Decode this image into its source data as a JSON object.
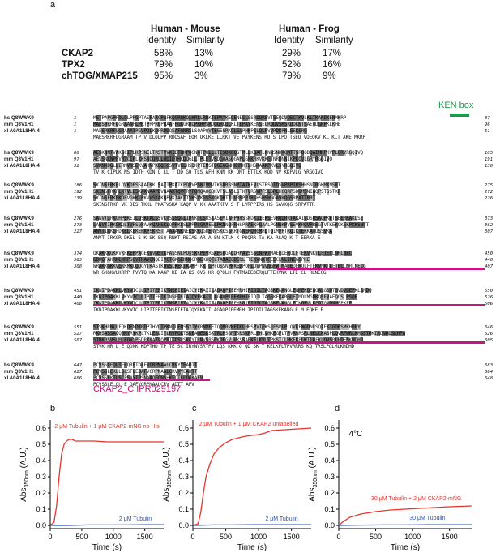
{
  "panel_a": {
    "letter": "a",
    "table": {
      "groups": [
        "Human - Mouse",
        "Human - Frog"
      ],
      "subheaders": [
        "Identity",
        "Similarity",
        "Identity",
        "Similarity"
      ],
      "rows": [
        {
          "label": "CKAP2",
          "values": [
            "58%",
            "13%",
            "29%",
            "17%"
          ]
        },
        {
          "label": "TPX2",
          "values": [
            "79%",
            "10%",
            "52%",
            "16%"
          ]
        },
        {
          "label": "chTOG/XMAP215",
          "values": [
            "95%",
            "3%",
            "79%",
            "9%"
          ]
        }
      ]
    },
    "ken_box_label": "KEN box",
    "domain_label": "CKAP2_C IPR029197",
    "alignment_blocks": [
      {
        "rows": [
          {
            "name": "hs Q8WWK9",
            "start": "1",
            "end": "87",
            "seq": "MSTPAPGPRDLQLPRGPTASPAAGPAFKQGRGKQLKRLLRRKTEPAYKEGENESLSSRDQRSVTSEQDVQECTKVLKLTKAMDKENMKRP"
          },
          {
            "name": "mm Q3V1H1",
            "start": "1",
            "end": "96",
            "seq": "MAESRKRFLGRAANPLPRTPRPRGPRAAFPGKGRRDPRRPSRDGGRKQLKLTEPAYKENSEQRDDVSRSRDQKNTSAEQDGRPKLKHE"
          },
          {
            "name": "xl A0A1L8HAI4",
            "start": "1",
            "end": "51",
            "seq": "MAESRKRFLGRAAATPGVPDLKQPRDDQSAFGNRSLSQAPQVTEEEGRKQLSAPHKPSLQLPVVRDKRNLEEKSRG"
          }
        ],
        "cons": "MAESRKRFLGRAAM TP V DLQLPP RDQSAF EQR QKLKE LLRKT VE PAYKENS RQ S LPQ TSEQ VQEQKV KL KLT AKE MKRP"
      },
      {
        "rows": [
          {
            "name": "hs Q8WWK9",
            "start": "88",
            "end": "185",
            "seq": "AESKNNTVAKGCIPLKPSNELTRSTVVKIDTHKPQGNQTPHLLLTESDKPQSTMLLKQAFLKNNSNKKQMTTSRQQDQAIMKPKVPLGRYRGQIVQ"
          },
          {
            "name": "mm Q3V1H1",
            "start": "97",
            "end": "191",
            "seq": "AESSNKNPFVRTCIPLKKSNDQRDLQDIDTHKDQGLLTPLETVSDGQASQGAPLGNKRKVKKGTNRDNNIKPKQVLGRYRGQIVQ"
          },
          {
            "name": "xl A0A1L8HAI4",
            "start": "52",
            "end": "138",
            "seq": "SVRNKDGLLERMVNSEKVAKNPKQQIGSVTVKLHSDKPTEMSTQGEGGNKKKMKTLHSKAAKPKVLSYRGQIVQ"
          }
        ],
        "cons": "TV K CIPLK NS IDTH KDN Q LL T DD GQ TLS AFH KNN KK QMT ETTLK KQD NV KKPVLG YRGQIVQ"
      },
      {
        "rows": [
          {
            "name": "hs Q8WWK9",
            "start": "186",
            "end": "275",
            "seq": "SKINSFRKPLQVKDESSAATKKLSATIPKATKPQPVPSNTVMVTKSNRSSNMTATKFVLSTRSQTDSVPRPIRSHHSNTRGKMKNSRT"
          },
          {
            "name": "mm Q3V1H1",
            "start": "192",
            "end": "272",
            "seq": "SKINSFRKPLKTVLESKAKNAAPDVNAAKTQVFRYFQMQAHGQKVTSLASLGTKTVRSVPFSLSRLHCQRPSDGMSNIAQPSTSSTKR"
          },
          {
            "name": "xl A0A1L8HAI4",
            "start": "139",
            "end": "226",
            "seq": "SKINSFRKPKDEVGKKLPKVVSKAKQPVKTAKTTVKSVKGSSKGKQHTTLVRRPPIRSHSHSHGGAVKQGSRPATTRRT"
          }
        ],
        "cons": "SKINSFRKP VK DES TKKL PKATVSKA KAQP V KK AAATKFV S T LVRPPIRS HS GAVKQG SRPATTR"
      },
      {
        "rows": [
          {
            "name": "hs Q8WWK9",
            "start": "276",
            "end": "373",
            "seq": "SANVTIRKGHPEKEILQSKTALSSVKTSSSQGIIRNKTLSRSIASEVIARPHHSSNDKIIEKSEVRQDRRTAKAIVDSRSAQPKETSEERKAKLSE"
          },
          {
            "name": "mm Q3V1H1",
            "start": "273",
            "end": "362",
            "seq": "LANVTIRKGKQLTVRSQPAVKQAHSKLQPRKSSLPRRSGAVESLPKNNQPRHSPRAEKRQAALPGNNKPVSEVKRQVPREGTVTKEKGKEKPKKSNVT"
          },
          {
            "name": "xl A0A1L8HAI4",
            "start": "227",
            "end": "307",
            "seq": "ANVTIRKGPDKELKEKEPKPSKRSTTAAAANKNEKSKKQGRENVSKKSSRRTGNEKQRGMHDTQIMPPTRQIKTEKKAQDSSVKA"
          }
        ],
        "cons": "ANVT IRKGR DKEL S K SK SSQ RNKT RSIAS AR A SN KTLM K PDQRR TA KA RSAQ K T EERKA E"
      },
      {
        "rows": [
          {
            "name": "hs Q8WWK9",
            "start": "374",
            "end": "450",
            "seq": "QKAKKKGKKVKRKEPPAGEKVVNSTKPASSNLPQTSKKPEVRSAFSRGAQDHPAVSSSGNFWTMAEEDERQLFTEKVNKTLETECLNRLNEC"
          },
          {
            "name": "mm Q3V1H1",
            "start": "363",
            "end": "440",
            "seq": "GDRQFAKRKLKRPSQVTKAVQNQEIVCTGKGEKNQGRQEKHQFLTAMAEEDERLFTEKVNKTFEECLNLINEGGPKE"
          },
          {
            "name": "xl A0A1L8HAI4",
            "start": "308",
            "end": "407",
            "seq": "WRAKKGKKVGKKMKQQQGYTKASTKQVSLKEKTKAMPTKKTGPFQSSNPKKEDPQPLQVPNVNGFWTMAEEDERQLFTEKVNKTLETECLNRLNECG"
          }
        ],
        "cons": "WR GKGKVLKRPP PVVTQ KA KAGP KE EA KS QVS KR QPQLH FWTMAEEDERQLFTEKVNK LTE CL RLNECG"
      },
      {
        "rows": [
          {
            "name": "hs Q8WWK9",
            "start": "451",
            "end": "550",
            "seq": "IKNIPDAKKLVKYWICLLIPITEPIKTNSPIEIAIQYEKAIILAGAQPIEEMRHIPIDILTAGSKEKANGLENMEKQEAGALGSDTGVDVDEPKLSNDQ"
          },
          {
            "name": "mm Q3V1H1",
            "start": "440",
            "end": "526",
            "seq": "IKNIPDAKKLVKYWICLLIPITEPIKTNSPIEIAIQYEKAIILAGAQPIEEMRHIPIDILTAGSKEKARGLETMDLMGNKQSFVAEQGSLPSQE"
          },
          {
            "name": "xl A0A1L8HAI4",
            "start": "408",
            "end": "506",
            "seq": "IKNIPDAKKLVKYWICLLIPITEPIKTNSPIEIAIQYEKAIILAGAQPIEEMRQIPIDILTAGSKEKANGLETKQFVLKEDTGVDVMEPKEE"
          }
        ],
        "cons": "IKNIPDAKKLVKYWICLLIPITEPIKTNSPIEIAIQYEKAIILAGAQPIEEMRH IPIDILTAGSKEKANGLE M EQKE E"
      },
      {
        "rows": [
          {
            "name": "hs Q8WWK9",
            "start": "551",
            "end": "646",
            "seq": "STSKHRNLLFQKQENDKRDPTHVQTPKNTLEQSSYIYKRNVFETQQVRVKETKLHRSPVTEKSLESMLPLQVKFWQDNLSQTEKIGDPSMKHDHY"
          },
          {
            "name": "mm Q3V1H1",
            "start": "527",
            "end": "626",
            "seq": "RKHSASSAQQDNYRYKPLTKLESLIYLRVPGLTSKEAQESKSKTRLPSGRTSRSKPRLEHLVHKEGFLTPVRRRSRLNELCKASPLQVRFWRLNMSSTHKIRDNDDSKHPA"
          },
          {
            "name": "xl A0A1L8HAI4",
            "start": "507",
            "end": "605",
            "seq": "STRKRSVSLMLFQVNPSDRKKATVQPRTTQSLSKCYIRNVSRSRKDEGVLVKSSAFKELKVLTPKSTQLHKEKPLKTLGFKLQVSRLHDFSKHDHD"
          }
        ],
        "cons": "STVK HR L E QDNK KDPTHD TP TE SC IRYNVSRTPV LQS KKK Q QD SK T KELKFLTPVRRRS KQ TRSLPQLMLKHDHD"
      },
      {
        "rows": [
          {
            "name": "hs Q8WWK9",
            "start": "647",
            "end": "683",
            "seq": "PCVSSLEQLTELQRETDAFVCRPNAALCRVYYEADTT"
          },
          {
            "name": "mm Q3V1H1",
            "start": "627",
            "end": "664",
            "seq": "PCVSSLEKLLSLSFLEDAFVCRPNAALCRVYYEADTT"
          },
          {
            "name": "xl A0A1L8HAI4",
            "start": "606",
            "end": "648",
            "seq": "PCVSSLKTLSCPSAYIPSNAAQECNSHKEQILLQGKAFV"
          }
        ],
        "cons": "PCVSSLE QL E   DAFVCRPNAALCRV ADTT AFV"
      }
    ]
  },
  "plots": [
    {
      "letter": "b",
      "red_label": "2 μM Tubulin + 1 μM CKAP2-mNG no His",
      "blue_label": "2 μM Tubulin",
      "corner_label": "",
      "chart_data": {
        "type": "line",
        "xlabel": "Time (s)",
        "ylabel": "Abs350nm (A.U.)",
        "xlim": [
          0,
          1800
        ],
        "ylim": [
          -0.02,
          0.65
        ],
        "xticks": [
          0,
          500,
          1000,
          1500
        ],
        "yticks": [
          0.0,
          0.1,
          0.2,
          0.3,
          0.4,
          0.5,
          0.6
        ],
        "series": [
          {
            "name": "red",
            "color": "#e8342c",
            "x": [
              0,
              60,
              100,
              140,
              180,
              220,
              260,
              300,
              350,
              400,
              500,
              700,
              900,
              1200,
              1500,
              1800
            ],
            "y": [
              0.0,
              0.02,
              0.12,
              0.3,
              0.44,
              0.5,
              0.52,
              0.53,
              0.53,
              0.52,
              0.52,
              0.52,
              0.515,
              0.515,
              0.515,
              0.515
            ]
          },
          {
            "name": "blue",
            "color": "#2b4fa8",
            "x": [
              0,
              300,
              600,
              900,
              1200,
              1500,
              1800
            ],
            "y": [
              0.0,
              0.0,
              0.003,
              0.003,
              0.003,
              0.004,
              0.004
            ]
          }
        ]
      }
    },
    {
      "letter": "c",
      "red_label": "2 μM Tubulin + 1 μM CKAP2 unlabelled",
      "blue_label": "2 μM Tubulin",
      "corner_label": "",
      "chart_data": {
        "type": "line",
        "xlabel": "Time (s)",
        "ylabel": "Abs350nm (A.U.)",
        "xlim": [
          0,
          1800
        ],
        "ylim": [
          -0.02,
          0.65
        ],
        "xticks": [
          0,
          500,
          1000,
          1500
        ],
        "yticks": [
          0.0,
          0.1,
          0.2,
          0.3,
          0.4,
          0.5,
          0.6
        ],
        "series": [
          {
            "name": "red",
            "color": "#e8342c",
            "x": [
              0,
              80,
              120,
              160,
              200,
              260,
              320,
              400,
              500,
              600,
              800,
              1000,
              1100,
              1200,
              1400,
              1600,
              1800
            ],
            "y": [
              0.0,
              0.01,
              0.08,
              0.2,
              0.3,
              0.38,
              0.44,
              0.48,
              0.51,
              0.53,
              0.55,
              0.56,
              0.57,
              0.585,
              0.59,
              0.595,
              0.6
            ]
          },
          {
            "name": "blue",
            "color": "#2b4fa8",
            "x": [
              0,
              300,
              600,
              900,
              1200,
              1500,
              1800
            ],
            "y": [
              0.0,
              0.003,
              0.003,
              0.004,
              0.004,
              0.004,
              0.004
            ]
          }
        ]
      }
    },
    {
      "letter": "d",
      "red_label": "30 μM Tubulin + 2 μM CKAP2-mNG",
      "blue_label": "30 μM Tubulin",
      "corner_label": "4°C",
      "chart_data": {
        "type": "line",
        "xlabel": "Time (s)",
        "ylabel": "Abs350nm (A.U.)",
        "xlim": [
          0,
          1800
        ],
        "ylim": [
          -0.02,
          0.65
        ],
        "xticks": [
          0,
          500,
          1000,
          1500
        ],
        "yticks": [
          0.0,
          0.1,
          0.2,
          0.3,
          0.4,
          0.5,
          0.6
        ],
        "series": [
          {
            "name": "red",
            "color": "#e8342c",
            "x": [
              0,
              50,
              150,
              300,
              500,
              700,
              900,
              1100,
              1300,
              1500,
              1800
            ],
            "y": [
              0.0,
              0.02,
              0.05,
              0.07,
              0.085,
              0.095,
              0.1,
              0.105,
              0.11,
              0.115,
              0.12
            ]
          },
          {
            "name": "blue",
            "color": "#2b4fa8",
            "x": [
              0,
              300,
              600,
              900,
              1200,
              1500,
              1800
            ],
            "y": [
              0.0,
              0.002,
              0.003,
              0.003,
              0.004,
              0.004,
              0.004
            ]
          }
        ]
      }
    }
  ]
}
